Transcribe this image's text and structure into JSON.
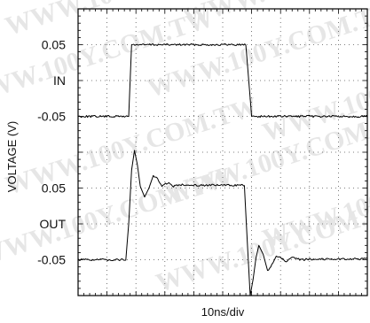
{
  "chart_data": {
    "type": "line",
    "title": "",
    "xlabel": "10ns/div",
    "ylabel": "VOLTAGE (V)",
    "x_divisions": 10,
    "y_divisions": 8,
    "grid": true,
    "grid_style": "dotted",
    "xlim": [
      0,
      10
    ],
    "ylim": [
      -4,
      4
    ],
    "ticks": [
      {
        "label": "0.05",
        "y": 3
      },
      {
        "label": "IN",
        "y": 2
      },
      {
        "label": "-0.05",
        "y": 1
      },
      {
        "label": "0.05",
        "y": -1
      },
      {
        "label": "OUT",
        "y": -2
      },
      {
        "label": "-0.05",
        "y": -3
      }
    ],
    "series": [
      {
        "label": "IN",
        "color": "#000000",
        "x": [
          0,
          1.75,
          1.85,
          2.0,
          5.8,
          5.9,
          6.0,
          10
        ],
        "y": [
          1.0,
          1.0,
          3.0,
          3.0,
          3.0,
          2.0,
          1.0,
          1.0
        ]
      },
      {
        "label": "OUT",
        "color": "#000000",
        "x": [
          0,
          1.65,
          1.75,
          1.85,
          1.95,
          2.05,
          2.15,
          2.3,
          2.45,
          2.6,
          2.75,
          2.9,
          3.1,
          3.3,
          3.6,
          4.0,
          5.65,
          5.75,
          5.85,
          5.95,
          6.05,
          6.15,
          6.25,
          6.4,
          6.55,
          6.7,
          6.85,
          7.0,
          7.2,
          7.4,
          7.7,
          8.1,
          10
        ],
        "y": [
          -3.0,
          -3.0,
          -2.0,
          -0.5,
          0.05,
          -0.35,
          -0.95,
          -1.25,
          -1.0,
          -0.65,
          -0.75,
          -0.95,
          -0.85,
          -0.95,
          -0.9,
          -0.92,
          -0.92,
          -0.95,
          -2.5,
          -4.0,
          -3.55,
          -2.95,
          -2.6,
          -2.85,
          -3.3,
          -3.15,
          -2.9,
          -2.95,
          -3.05,
          -2.95,
          -3.0,
          -2.98,
          -2.98
        ]
      }
    ]
  },
  "watermark": "WWW.100Y.COM.TW"
}
